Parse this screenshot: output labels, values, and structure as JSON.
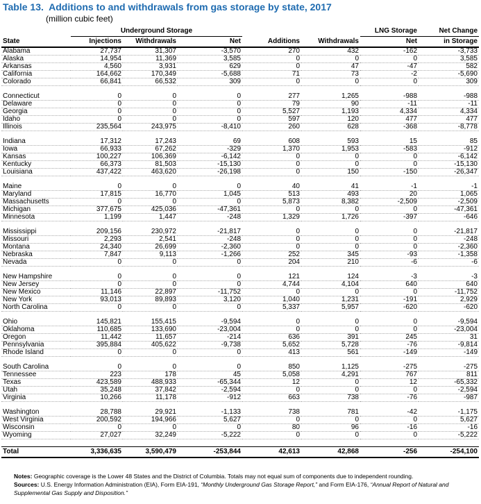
{
  "title": "Table 13.  Additions to and withdrawals from gas storage by state, 2017",
  "subtitle": "(million cubic feet)",
  "header": {
    "groups": [
      "Underground Storage",
      "LNG Storage",
      "Net Change"
    ],
    "columns": [
      "State",
      "Injections",
      "Withdrawals",
      "Net",
      "Additions",
      "Withdrawals",
      "Net",
      "in Storage"
    ]
  },
  "table": {
    "groups": [
      [
        [
          "Alabama",
          "27,737",
          "31,307",
          "-3,570",
          "270",
          "432",
          "-162",
          "-3,733"
        ],
        [
          "Alaska",
          "14,954",
          "11,369",
          "3,585",
          "0",
          "0",
          "0",
          "3,585"
        ],
        [
          "Arkansas",
          "4,560",
          "3,931",
          "629",
          "0",
          "47",
          "-47",
          "582"
        ],
        [
          "California",
          "164,662",
          "170,349",
          "-5,688",
          "71",
          "73",
          "-2",
          "-5,690"
        ],
        [
          "Colorado",
          "66,841",
          "66,532",
          "309",
          "0",
          "0",
          "0",
          "309"
        ]
      ],
      [
        [
          "Connecticut",
          "0",
          "0",
          "0",
          "277",
          "1,265",
          "-988",
          "-988"
        ],
        [
          "Delaware",
          "0",
          "0",
          "0",
          "79",
          "90",
          "-11",
          "-11"
        ],
        [
          "Georgia",
          "0",
          "0",
          "0",
          "5,527",
          "1,193",
          "4,334",
          "4,334"
        ],
        [
          "Idaho",
          "0",
          "0",
          "0",
          "597",
          "120",
          "477",
          "477"
        ],
        [
          "Illinois",
          "235,564",
          "243,975",
          "-8,410",
          "260",
          "628",
          "-368",
          "-8,778"
        ]
      ],
      [
        [
          "Indiana",
          "17,312",
          "17,243",
          "69",
          "608",
          "593",
          "15",
          "85"
        ],
        [
          "Iowa",
          "66,933",
          "67,262",
          "-329",
          "1,370",
          "1,953",
          "-583",
          "-912"
        ],
        [
          "Kansas",
          "100,227",
          "106,369",
          "-6,142",
          "0",
          "0",
          "0",
          "-6,142"
        ],
        [
          "Kentucky",
          "66,373",
          "81,503",
          "-15,130",
          "0",
          "0",
          "0",
          "-15,130"
        ],
        [
          "Louisiana",
          "437,422",
          "463,620",
          "-26,198",
          "0",
          "150",
          "-150",
          "-26,347"
        ]
      ],
      [
        [
          "Maine",
          "0",
          "0",
          "0",
          "40",
          "41",
          "-1",
          "-1"
        ],
        [
          "Maryland",
          "17,815",
          "16,770",
          "1,045",
          "513",
          "493",
          "20",
          "1,065"
        ],
        [
          "Massachusetts",
          "0",
          "0",
          "0",
          "5,873",
          "8,382",
          "-2,509",
          "-2,509"
        ],
        [
          "Michigan",
          "377,675",
          "425,036",
          "-47,361",
          "0",
          "0",
          "0",
          "-47,361"
        ],
        [
          "Minnesota",
          "1,199",
          "1,447",
          "-248",
          "1,329",
          "1,726",
          "-397",
          "-646"
        ]
      ],
      [
        [
          "Mississippi",
          "209,156",
          "230,972",
          "-21,817",
          "0",
          "0",
          "0",
          "-21,817"
        ],
        [
          "Missouri",
          "2,293",
          "2,541",
          "-248",
          "0",
          "0",
          "0",
          "-248"
        ],
        [
          "Montana",
          "24,340",
          "26,699",
          "-2,360",
          "0",
          "0",
          "0",
          "-2,360"
        ],
        [
          "Nebraska",
          "7,847",
          "9,113",
          "-1,266",
          "252",
          "345",
          "-93",
          "-1,358"
        ],
        [
          "Nevada",
          "0",
          "0",
          "0",
          "204",
          "210",
          "-6",
          "-6"
        ]
      ],
      [
        [
          "New Hampshire",
          "0",
          "0",
          "0",
          "121",
          "124",
          "-3",
          "-3"
        ],
        [
          "New Jersey",
          "0",
          "0",
          "0",
          "4,744",
          "4,104",
          "640",
          "640"
        ],
        [
          "New Mexico",
          "11,146",
          "22,897",
          "-11,752",
          "0",
          "0",
          "0",
          "-11,752"
        ],
        [
          "New York",
          "93,013",
          "89,893",
          "3,120",
          "1,040",
          "1,231",
          "-191",
          "2,929"
        ],
        [
          "North Carolina",
          "0",
          "0",
          "0",
          "5,337",
          "5,957",
          "-620",
          "-620"
        ]
      ],
      [
        [
          "Ohio",
          "145,821",
          "155,415",
          "-9,594",
          "0",
          "0",
          "0",
          "-9,594"
        ],
        [
          "Oklahoma",
          "110,685",
          "133,690",
          "-23,004",
          "0",
          "0",
          "0",
          "-23,004"
        ],
        [
          "Oregon",
          "11,442",
          "11,657",
          "-214",
          "636",
          "391",
          "245",
          "31"
        ],
        [
          "Pennsylvania",
          "395,884",
          "405,622",
          "-9,738",
          "5,652",
          "5,728",
          "-76",
          "-9,814"
        ],
        [
          "Rhode Island",
          "0",
          "0",
          "0",
          "413",
          "561",
          "-149",
          "-149"
        ]
      ],
      [
        [
          "South Carolina",
          "0",
          "0",
          "0",
          "850",
          "1,125",
          "-275",
          "-275"
        ],
        [
          "Tennessee",
          "223",
          "178",
          "45",
          "5,058",
          "4,291",
          "767",
          "811"
        ],
        [
          "Texas",
          "423,589",
          "488,933",
          "-65,344",
          "12",
          "0",
          "12",
          "-65,332"
        ],
        [
          "Utah",
          "35,248",
          "37,842",
          "-2,594",
          "0",
          "0",
          "0",
          "-2,594"
        ],
        [
          "Virginia",
          "10,266",
          "11,178",
          "-912",
          "663",
          "738",
          "-76",
          "-987"
        ]
      ],
      [
        [
          "Washington",
          "28,788",
          "29,921",
          "-1,133",
          "738",
          "781",
          "-42",
          "-1,175"
        ],
        [
          "West Virginia",
          "200,592",
          "194,966",
          "5,627",
          "0",
          "0",
          "0",
          "5,627"
        ],
        [
          "Wisconsin",
          "0",
          "0",
          "0",
          "80",
          "96",
          "-16",
          "-16"
        ],
        [
          "Wyoming",
          "27,027",
          "32,249",
          "-5,222",
          "0",
          "0",
          "0",
          "-5,222"
        ]
      ]
    ],
    "total": [
      "Total",
      "3,336,635",
      "3,590,479",
      "-253,844",
      "42,613",
      "42,868",
      "-256",
      "-254,100"
    ]
  },
  "notes": {
    "label": "Notes:",
    "text": "Geographic coverage is the Lower 48 States and the District of Columbia. Totals may not equal sum of components due to independent rounding."
  },
  "sources": {
    "label": "Sources:",
    "text1": "U.S. Energy Information Administration (EIA), Form EIA-191, ",
    "italic1": "“Monthly Underground Gas Storage Report,”",
    "text2": " and Form EIA-176, ",
    "italic2": "“Annual Report of Natural and Supplemental Gas Supply and Disposition.”"
  }
}
